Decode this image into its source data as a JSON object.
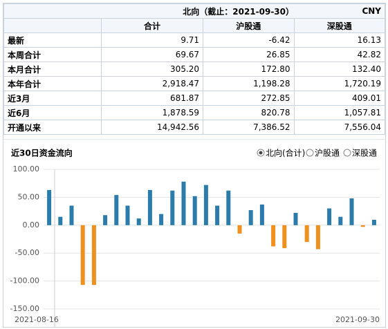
{
  "header": {
    "title": "北向（截止：2021-09-30）",
    "unit": "CNY"
  },
  "table": {
    "columns": [
      "合计",
      "沪股通",
      "深股通"
    ],
    "rows": [
      [
        "最新",
        "9.71",
        "-6.42",
        "16.13"
      ],
      [
        "本周合计",
        "69.67",
        "26.85",
        "42.82"
      ],
      [
        "本月合计",
        "305.20",
        "172.80",
        "132.40"
      ],
      [
        "本年合计",
        "2,918.47",
        "1,198.28",
        "1,720.19"
      ],
      [
        "近3月",
        "681.87",
        "272.85",
        "409.01"
      ],
      [
        "近6月",
        "1,878.59",
        "820.78",
        "1,057.81"
      ],
      [
        "开通以来",
        "14,942.56",
        "7,386.52",
        "7,556.04"
      ]
    ]
  },
  "chart_data": {
    "type": "bar",
    "title": "近30日资金流向",
    "options": [
      "北向(合计)",
      "沪股通",
      "深股通"
    ],
    "categories": [
      "2021-08-16",
      null,
      null,
      null,
      null,
      null,
      null,
      null,
      null,
      null,
      null,
      null,
      null,
      null,
      null,
      null,
      null,
      null,
      null,
      null,
      null,
      null,
      null,
      null,
      null,
      null,
      null,
      null,
      null,
      "2021-09-30"
    ],
    "values": [
      63,
      15,
      35,
      -107,
      -107,
      18,
      54,
      35,
      12,
      63,
      20,
      62,
      78,
      52,
      72,
      35,
      62,
      -15,
      27,
      37,
      -38,
      -41,
      22,
      -30,
      -43,
      30,
      15,
      48,
      -3,
      9.71
    ],
    "positive_color": "#2b7bab",
    "negative_color": "#f0901f",
    "ylim": [
      -150,
      100
    ],
    "yticks": [
      {
        "value": -150,
        "label": "-150.00"
      },
      {
        "value": -100,
        "label": "-100.00"
      },
      {
        "value": -50,
        "label": "-50.00"
      },
      {
        "value": 0,
        "label": "0.00"
      },
      {
        "value": 50,
        "label": "50.00"
      },
      {
        "value": 100,
        "label": "100.00"
      }
    ],
    "grid": true
  }
}
